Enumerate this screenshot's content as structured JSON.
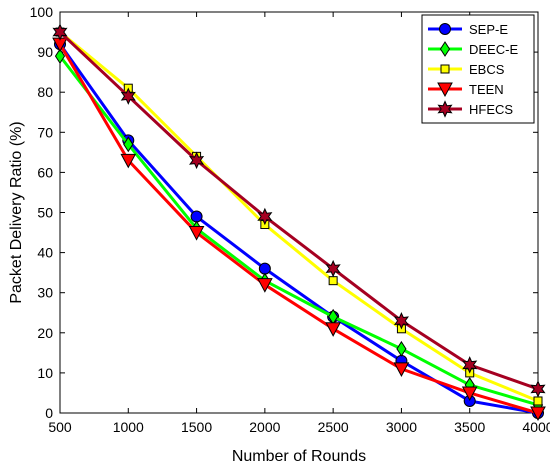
{
  "chart_data": {
    "type": "line",
    "title": "",
    "xlabel": "Number of Rounds",
    "ylabel": "Packet Delivery Ratio (%)",
    "x": [
      500,
      1000,
      1500,
      2000,
      2500,
      3000,
      3500,
      4000
    ],
    "xlim": [
      500,
      4000
    ],
    "ylim": [
      0,
      100
    ],
    "xticks": [
      500,
      1000,
      1500,
      2000,
      2500,
      3000,
      3500,
      4000
    ],
    "yticks": [
      0,
      10,
      20,
      30,
      40,
      50,
      60,
      70,
      80,
      90,
      100
    ],
    "grid": false,
    "legend_position": "top-right",
    "series": [
      {
        "name": "SEP-E",
        "color": "#0000ff",
        "marker": "circle",
        "values": [
          92,
          68,
          49,
          36,
          24,
          13,
          3,
          0
        ]
      },
      {
        "name": "DEEC-E",
        "color": "#00ff00",
        "marker": "diamond",
        "values": [
          89,
          67,
          46,
          33,
          24,
          16,
          7,
          2
        ]
      },
      {
        "name": "EBCS",
        "color": "#ffff00",
        "marker": "square",
        "values": [
          95,
          81,
          64,
          47,
          33,
          21,
          10,
          3
        ]
      },
      {
        "name": "TEEN",
        "color": "#ff0000",
        "marker": "triangle-down",
        "values": [
          92,
          63,
          45,
          32,
          21,
          11,
          5,
          0
        ]
      },
      {
        "name": "HFECS",
        "color": "#a50021",
        "marker": "hexagram",
        "values": [
          95,
          79,
          63,
          49,
          36,
          23,
          12,
          6
        ]
      }
    ]
  }
}
